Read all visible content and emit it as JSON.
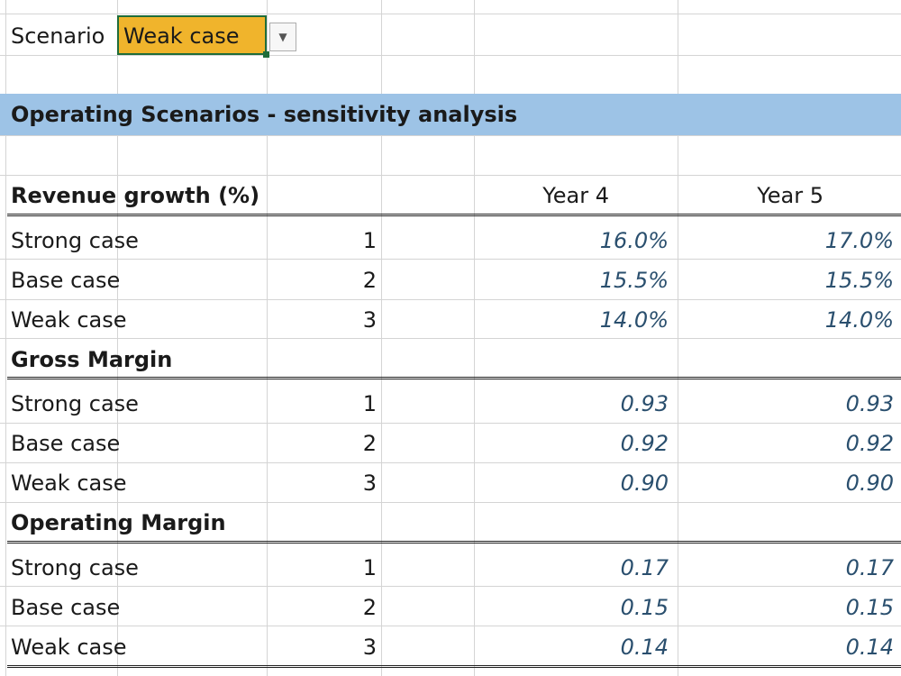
{
  "scenario": {
    "label": "Scenario",
    "selected": "Weak case"
  },
  "banner": {
    "title": "Operating Scenarios - sensitivity analysis"
  },
  "columns": {
    "year4": "Year 4",
    "year5": "Year 5"
  },
  "sections": [
    {
      "title": "Revenue growth (%)",
      "rows": [
        {
          "label": "Strong case",
          "index": "1",
          "year4": "16.0%",
          "year5": "17.0%"
        },
        {
          "label": "Base case",
          "index": "2",
          "year4": "15.5%",
          "year5": "15.5%"
        },
        {
          "label": "Weak case",
          "index": "3",
          "year4": "14.0%",
          "year5": "14.0%"
        }
      ]
    },
    {
      "title": "Gross Margin",
      "rows": [
        {
          "label": "Strong case",
          "index": "1",
          "year4": "0.93",
          "year5": "0.93"
        },
        {
          "label": "Base case",
          "index": "2",
          "year4": "0.92",
          "year5": "0.92"
        },
        {
          "label": "Weak case",
          "index": "3",
          "year4": "0.90",
          "year5": "0.90"
        }
      ]
    },
    {
      "title": "Operating Margin",
      "rows": [
        {
          "label": "Strong case",
          "index": "1",
          "year4": "0.17",
          "year5": "0.17"
        },
        {
          "label": "Base case",
          "index": "2",
          "year4": "0.15",
          "year5": "0.15"
        },
        {
          "label": "Weak case",
          "index": "3",
          "year4": "0.14",
          "year5": "0.14"
        }
      ]
    }
  ],
  "colors": {
    "banner": "#9dc3e6",
    "dropdown": "#f0b42c",
    "values": "#2a4f6e",
    "gridline": "#d4d4d4"
  },
  "icons": {
    "dropdown": "chevron-down-icon"
  }
}
